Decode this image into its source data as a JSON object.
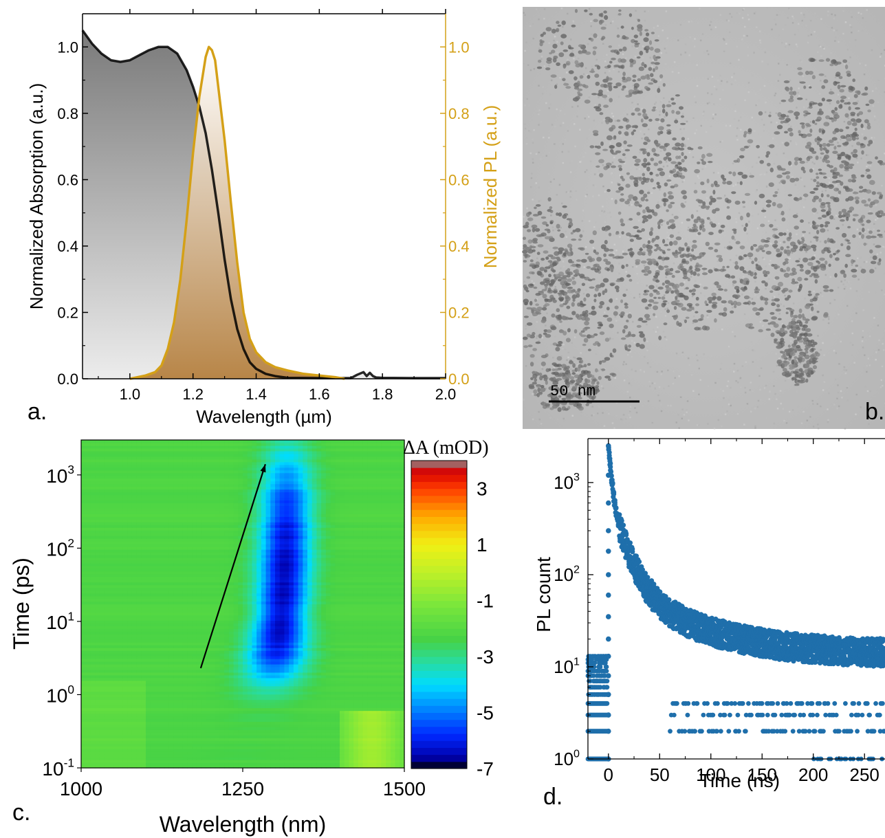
{
  "chart_data": [
    {
      "panel": "a.",
      "type": "area",
      "xlabel": "Wavelength (µm)",
      "ylabel_left": "Normalized Absorption (a.u.)",
      "ylabel_right": "Normalized PL (a.u.)",
      "xlim": [
        0.85,
        2.0
      ],
      "ylim": [
        0,
        1.1
      ],
      "xticks": [
        {
          "v": 1.0,
          "t": "1.0"
        },
        {
          "v": 1.2,
          "t": "1.2"
        },
        {
          "v": 1.4,
          "t": "1.4"
        },
        {
          "v": 1.6,
          "t": "1.6"
        },
        {
          "v": 1.8,
          "t": "1.8"
        },
        {
          "v": 2.0,
          "t": "2.0"
        }
      ],
      "yticks_left": [
        {
          "v": 0.0,
          "t": "0.0"
        },
        {
          "v": 0.2,
          "t": "0.2"
        },
        {
          "v": 0.4,
          "t": "0.4"
        },
        {
          "v": 0.6,
          "t": "0.6"
        },
        {
          "v": 0.8,
          "t": "0.8"
        },
        {
          "v": 1.0,
          "t": "1.0"
        }
      ],
      "yticks_right": [
        {
          "v": 0.0,
          "t": "0.0"
        },
        {
          "v": 0.2,
          "t": "0.2"
        },
        {
          "v": 0.4,
          "t": "0.4"
        },
        {
          "v": 0.6,
          "t": "0.6"
        },
        {
          "v": 0.8,
          "t": "0.8"
        },
        {
          "v": 1.0,
          "t": "1.0"
        }
      ],
      "series": [
        {
          "role": "absorption",
          "color": "#000000",
          "x": [
            0.85,
            0.88,
            0.91,
            0.94,
            0.97,
            1.0,
            1.03,
            1.06,
            1.09,
            1.12,
            1.15,
            1.18,
            1.2,
            1.22,
            1.24,
            1.26,
            1.28,
            1.3,
            1.32,
            1.34,
            1.36,
            1.38,
            1.4,
            1.43,
            1.46,
            1.5,
            1.6,
            1.7,
            1.72,
            1.74,
            1.75,
            1.76,
            1.77,
            1.78,
            1.8,
            1.9,
            2.0
          ],
          "y": [
            1.05,
            1.01,
            0.98,
            0.96,
            0.955,
            0.96,
            0.975,
            0.99,
            1.0,
            1.0,
            0.98,
            0.93,
            0.88,
            0.82,
            0.74,
            0.63,
            0.5,
            0.36,
            0.24,
            0.15,
            0.09,
            0.05,
            0.03,
            0.015,
            0.008,
            0.003,
            0.002,
            0.002,
            0.012,
            0.02,
            0.008,
            0.018,
            0.008,
            0.004,
            0.003,
            0.002,
            0.002
          ]
        },
        {
          "role": "photoluminescence",
          "color": "#d4a017",
          "x": [
            1.0,
            1.05,
            1.08,
            1.1,
            1.12,
            1.14,
            1.16,
            1.18,
            1.2,
            1.22,
            1.24,
            1.25,
            1.26,
            1.27,
            1.28,
            1.3,
            1.32,
            1.34,
            1.36,
            1.38,
            1.4,
            1.43,
            1.46,
            1.5,
            1.55,
            1.6,
            1.65,
            1.68
          ],
          "y": [
            0.0,
            0.01,
            0.02,
            0.04,
            0.09,
            0.17,
            0.3,
            0.48,
            0.68,
            0.85,
            0.97,
            1.0,
            0.99,
            0.96,
            0.88,
            0.72,
            0.53,
            0.35,
            0.2,
            0.12,
            0.08,
            0.05,
            0.035,
            0.025,
            0.015,
            0.01,
            0.005,
            0.0
          ]
        }
      ]
    },
    {
      "panel": "b.",
      "type": "image",
      "scalebar_label": "50 nm"
    },
    {
      "panel": "c.",
      "type": "heatmap",
      "xlabel": "Wavelength (nm)",
      "ylabel": "Time (ps)",
      "xlim": [
        1000,
        1500
      ],
      "ylim": [
        0.1,
        3000
      ],
      "yscale": "log",
      "xticks": [
        {
          "v": 1000,
          "t": "1000"
        },
        {
          "v": 1250,
          "t": "1250"
        },
        {
          "v": 1500,
          "t": "1500"
        }
      ],
      "yticks": [
        {
          "v": 0.1,
          "b": "10",
          "e": "-1"
        },
        {
          "v": 1,
          "b": "10",
          "e": "0"
        },
        {
          "v": 10,
          "b": "10",
          "e": "1"
        },
        {
          "v": 100,
          "b": "10",
          "e": "2"
        },
        {
          "v": 1000,
          "b": "10",
          "e": "3"
        }
      ],
      "colorbar": {
        "title": "ΔA (mOD)",
        "range": [
          -7,
          4
        ],
        "ticks": [
          {
            "v": 3,
            "t": "3"
          },
          {
            "v": 1,
            "t": "1"
          },
          {
            "v": -1,
            "t": "-1"
          },
          {
            "v": -3,
            "t": "-3"
          },
          {
            "v": -5,
            "t": "-5"
          },
          {
            "v": -7,
            "t": "-7"
          }
        ]
      },
      "bleach_feature": {
        "peak_wavelength_nm": 1320,
        "min_value_mOD": -6.5,
        "onset_ps": 1.5,
        "arrow": {
          "from": [
            1185,
            2.3
          ],
          "to": [
            1285,
            1400
          ]
        }
      }
    },
    {
      "panel": "d.",
      "type": "scatter",
      "xlabel": "Time (ns)",
      "ylabel": "PL count",
      "xlim": [
        -20,
        270
      ],
      "ylim": [
        1,
        3000
      ],
      "yscale": "log",
      "color": "#1f6fab",
      "xticks": [
        {
          "v": 0,
          "t": "0"
        },
        {
          "v": 50,
          "t": "50"
        },
        {
          "v": 100,
          "t": "100"
        },
        {
          "v": 150,
          "t": "150"
        },
        {
          "v": 200,
          "t": "200"
        },
        {
          "v": 250,
          "t": "250"
        }
      ],
      "yticks": [
        {
          "v": 1,
          "b": "10",
          "e": "0"
        },
        {
          "v": 10,
          "b": "10",
          "e": "1"
        },
        {
          "v": 100,
          "b": "10",
          "e": "2"
        },
        {
          "v": 1000,
          "b": "10",
          "e": "3"
        }
      ],
      "decay": {
        "t0_ns": 0,
        "peak_count": 3000,
        "count_at_50ns": 60,
        "count_at_100ns": 25,
        "count_at_250ns": 13,
        "background": 8
      }
    }
  ]
}
